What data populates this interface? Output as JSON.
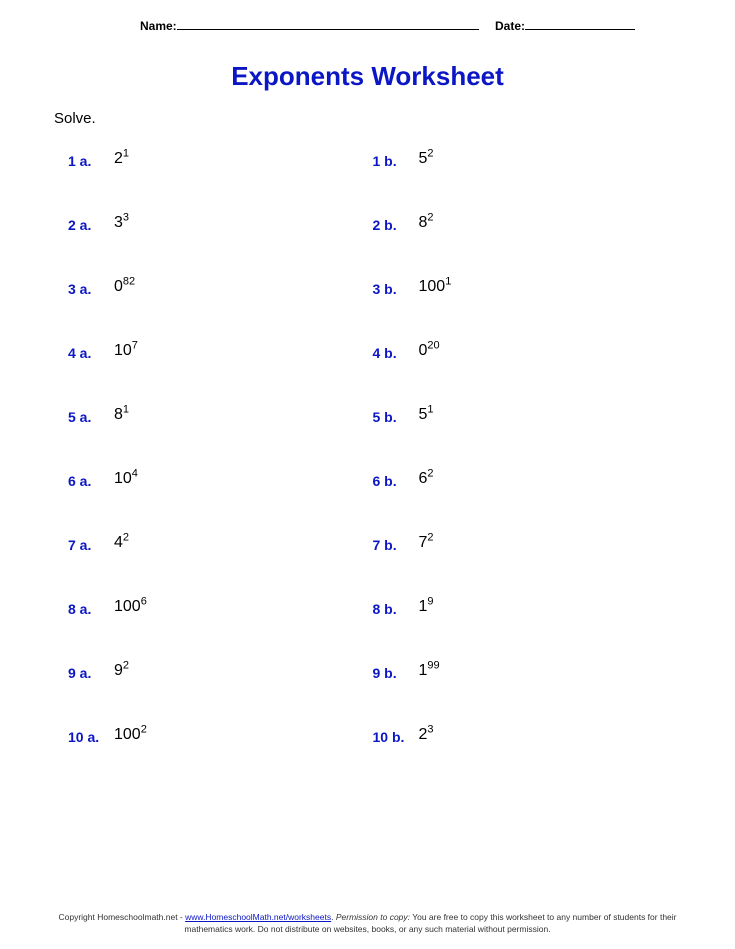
{
  "colors": {
    "accent": "#0b16c5",
    "text": "#000000",
    "background": "#ffffff"
  },
  "header": {
    "name_label": "Name:",
    "date_label": "Date:"
  },
  "title": "Exponents Worksheet",
  "instruction": "Solve.",
  "problems": [
    {
      "label": "1 a.",
      "base": "2",
      "exp": "1"
    },
    {
      "label": "1 b.",
      "base": "5",
      "exp": "2"
    },
    {
      "label": "2 a.",
      "base": "3",
      "exp": "3"
    },
    {
      "label": "2 b.",
      "base": "8",
      "exp": "2"
    },
    {
      "label": "3 a.",
      "base": "0",
      "exp": "82"
    },
    {
      "label": "3 b.",
      "base": "100",
      "exp": "1"
    },
    {
      "label": "4 a.",
      "base": "10",
      "exp": "7"
    },
    {
      "label": "4 b.",
      "base": "0",
      "exp": "20"
    },
    {
      "label": "5 a.",
      "base": "8",
      "exp": "1"
    },
    {
      "label": "5 b.",
      "base": "5",
      "exp": "1"
    },
    {
      "label": "6 a.",
      "base": "10",
      "exp": "4"
    },
    {
      "label": "6 b.",
      "base": "6",
      "exp": "2"
    },
    {
      "label": "7 a.",
      "base": "4",
      "exp": "2"
    },
    {
      "label": "7 b.",
      "base": "7",
      "exp": "2"
    },
    {
      "label": "8 a.",
      "base": "100",
      "exp": "6"
    },
    {
      "label": "8 b.",
      "base": "1",
      "exp": "9"
    },
    {
      "label": "9 a.",
      "base": "9",
      "exp": "2"
    },
    {
      "label": "9 b.",
      "base": "1",
      "exp": "99"
    },
    {
      "label": "10 a.",
      "base": "100",
      "exp": "2"
    },
    {
      "label": "10 b.",
      "base": "2",
      "exp": "3"
    }
  ],
  "footer": {
    "copyright_prefix": "Copyright Homeschoolmath.net - ",
    "link_text": "www.HomeschoolMath.net/worksheets",
    "period": ". ",
    "permission_label": "Permission to copy:",
    "permission_text": " You are free to copy this worksheet to any number of students for their mathematics work. Do not distribute on websites, books, or any such material without permission."
  }
}
